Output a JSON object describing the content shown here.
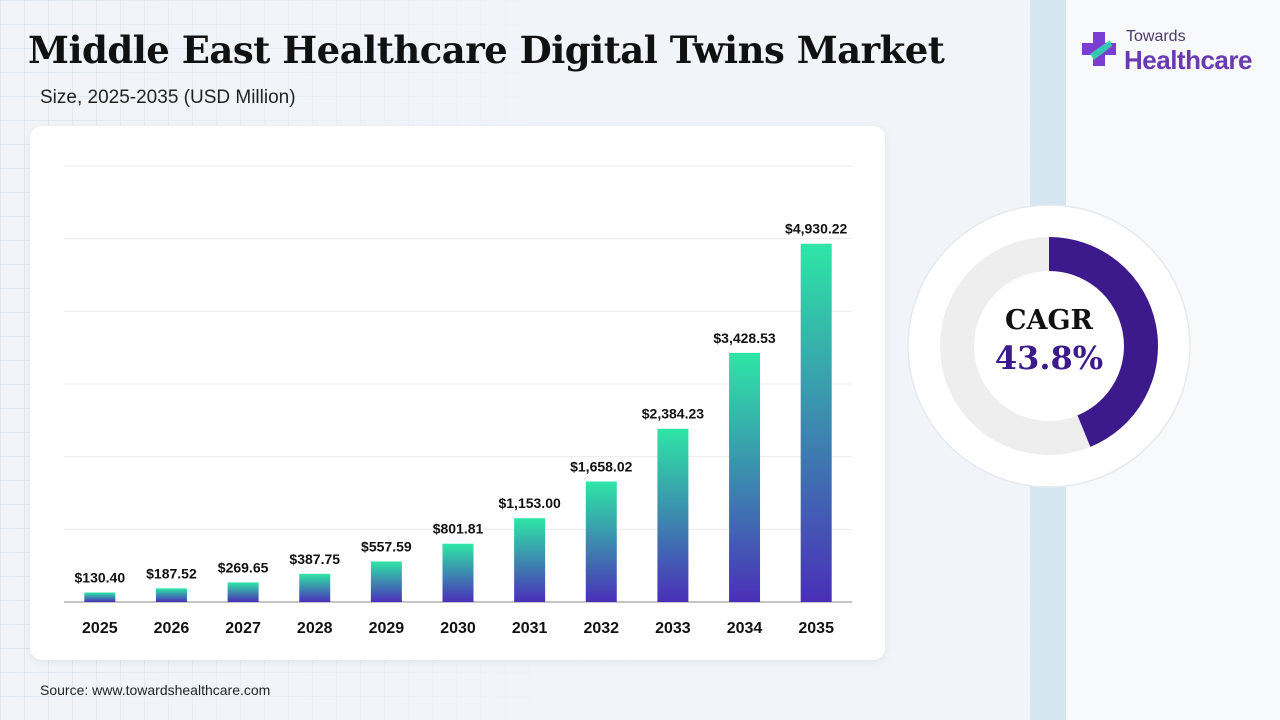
{
  "title": "Middle East Healthcare Digital Twins Market",
  "subtitle": "Size, 2025-2035 (USD Million)",
  "logo": {
    "top": "Towards",
    "bottom": "Healthcare",
    "icon": "medical-cross-icon"
  },
  "source": "Source: www.towardshealthcare.com",
  "cagr": {
    "label": "CAGR",
    "value": "43.8%",
    "fraction": 0.438
  },
  "colors": {
    "bar_top": "#2ee6a6",
    "bar_bottom": "#4a2fb8",
    "cagr_ring": "#3d1a8c",
    "cagr_track": "#eeeeee",
    "logo_cross_a": "#7a3fd0",
    "logo_cross_b": "#2fd6b0"
  },
  "chart_data": {
    "type": "bar",
    "categories": [
      "2025",
      "2026",
      "2027",
      "2028",
      "2029",
      "2030",
      "2031",
      "2032",
      "2033",
      "2034",
      "2035"
    ],
    "values": [
      130.4,
      187.52,
      269.65,
      387.75,
      557.59,
      801.81,
      1153.0,
      1658.02,
      2384.23,
      3428.53,
      4930.22
    ],
    "labels": [
      "$130.40",
      "$187.52",
      "$269.65",
      "$387.75",
      "$557.59",
      "$801.81",
      "$1,153.00",
      "$1,658.02",
      "$2,384.23",
      "$3,428.53",
      "$4,930.22"
    ],
    "ylim": [
      0,
      6000
    ],
    "grid": true,
    "xlabel": "",
    "ylabel": ""
  }
}
